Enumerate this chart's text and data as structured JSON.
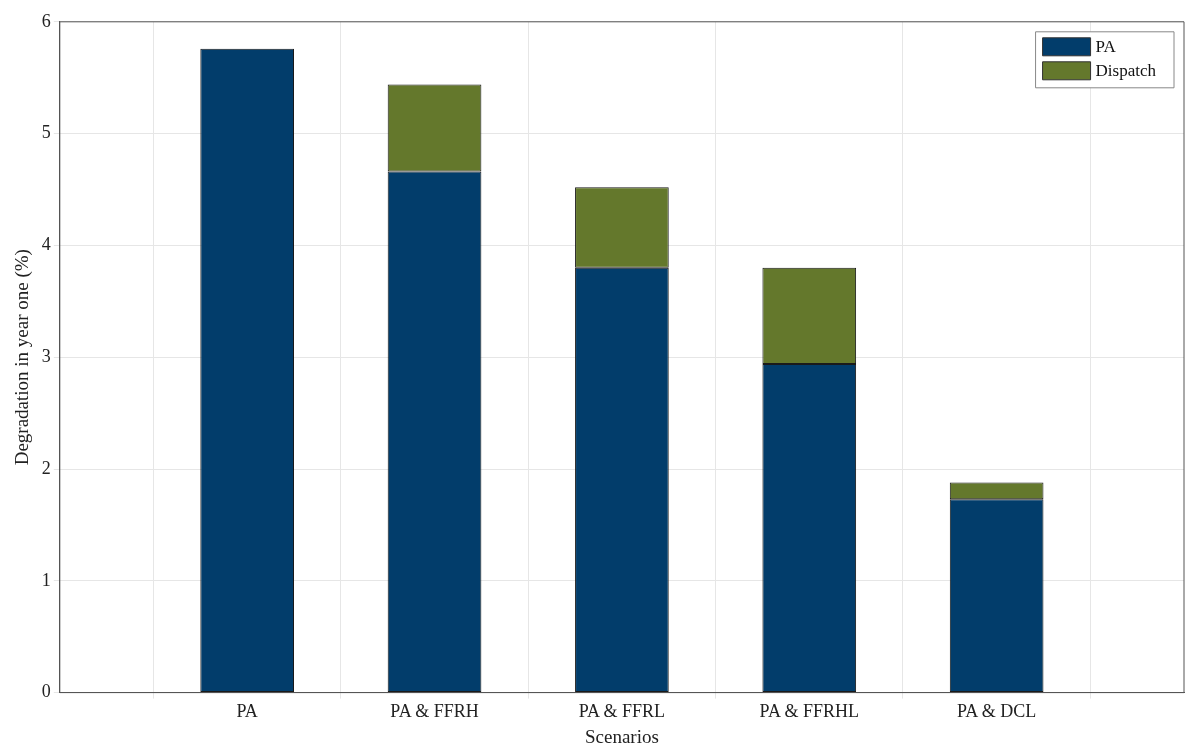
{
  "chart_data": {
    "type": "bar",
    "stacked": true,
    "xlabel": "Scenarios",
    "ylabel": "Degradation in year one (%)",
    "categories": [
      "PA",
      "PA & FFRH",
      "PA & FFRL",
      "PA & FFRHL",
      "PA & DCL"
    ],
    "series": [
      {
        "name": "PA",
        "color": "#023d6b",
        "values": [
          5.76,
          4.66,
          3.8,
          2.94,
          1.73
        ]
      },
      {
        "name": "Dispatch",
        "color": "#64782c",
        "values": [
          0,
          0.78,
          0.72,
          0.86,
          0.15
        ]
      }
    ],
    "ylim": [
      0,
      6
    ],
    "yticks": [
      0,
      1,
      2,
      3,
      4,
      5,
      6
    ],
    "grid": true,
    "legend": "top right"
  }
}
